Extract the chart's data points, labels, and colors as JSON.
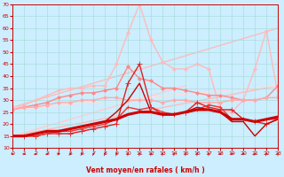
{
  "bg_color": "#cceeff",
  "grid_color": "#aadddd",
  "red_dark": "#cc0000",
  "red_mid": "#ff4444",
  "red_light": "#ffaaaa",
  "red_vlight": "#ffcccc",
  "xlabel": "Vent moyen/en rafales ( km/h )",
  "xmin": 0,
  "xmax": 23,
  "ymin": 10,
  "ymax": 70,
  "yticks": [
    10,
    15,
    20,
    25,
    30,
    35,
    40,
    45,
    50,
    55,
    60,
    65,
    70
  ],
  "xticks": [
    0,
    1,
    2,
    3,
    4,
    5,
    6,
    7,
    8,
    9,
    10,
    11,
    12,
    13,
    14,
    15,
    16,
    17,
    18,
    19,
    20,
    21,
    22,
    23
  ],
  "series": [
    {
      "name": "diagonal_light1",
      "x": [
        0,
        23
      ],
      "y": [
        15,
        36
      ],
      "color": "#ffbbbb",
      "lw": 1.0,
      "marker": null,
      "zorder": 1
    },
    {
      "name": "diagonal_light2",
      "x": [
        0,
        23
      ],
      "y": [
        27,
        60
      ],
      "color": "#ffbbbb",
      "lw": 1.0,
      "marker": null,
      "zorder": 1
    },
    {
      "name": "diagonal_light3",
      "x": [
        0,
        15
      ],
      "y": [
        15,
        36
      ],
      "color": "#ffcccc",
      "lw": 1.0,
      "marker": null,
      "zorder": 1
    },
    {
      "name": "diagonal_lighter",
      "x": [
        0,
        23
      ],
      "y": [
        26,
        36
      ],
      "color": "#ffdddd",
      "lw": 1.0,
      "marker": null,
      "zorder": 1
    },
    {
      "name": "wavy_light_top",
      "x": [
        0,
        1,
        2,
        3,
        4,
        5,
        6,
        7,
        8,
        9,
        10,
        11,
        12,
        13,
        14,
        15,
        16,
        17,
        18,
        19,
        20,
        21,
        22,
        23
      ],
      "y": [
        26,
        28,
        30,
        32,
        34,
        35,
        35,
        36,
        36,
        45,
        58,
        70,
        55,
        46,
        43,
        43,
        45,
        43,
        26,
        25,
        30,
        43,
        59,
        32
      ],
      "color": "#ffbbbb",
      "lw": 1.0,
      "marker": "D",
      "ms": 2,
      "zorder": 2
    },
    {
      "name": "wavy_light_mid",
      "x": [
        0,
        1,
        2,
        3,
        4,
        5,
        6,
        7,
        8,
        9,
        10,
        11,
        12,
        13,
        14,
        15,
        16,
        17,
        18,
        19,
        20,
        21,
        22,
        23
      ],
      "y": [
        26,
        27,
        28,
        29,
        31,
        32,
        33,
        33,
        34,
        35,
        44,
        39,
        38,
        35,
        35,
        34,
        33,
        32,
        32,
        31,
        30,
        30,
        31,
        36
      ],
      "color": "#ff8888",
      "lw": 1.0,
      "marker": "D",
      "ms": 2,
      "zorder": 2
    },
    {
      "name": "wavy_light_low",
      "x": [
        0,
        1,
        2,
        3,
        4,
        5,
        6,
        7,
        8,
        9,
        10,
        11,
        12,
        13,
        14,
        15,
        16,
        17,
        18,
        19,
        20,
        21,
        22,
        23
      ],
      "y": [
        26,
        27,
        27,
        28,
        29,
        29,
        30,
        30,
        31,
        31,
        30,
        30,
        30,
        29,
        30,
        30,
        29,
        29,
        29,
        30,
        30,
        30,
        31,
        31
      ],
      "color": "#ffaaaa",
      "lw": 1.0,
      "marker": "D",
      "ms": 2,
      "zorder": 2
    },
    {
      "name": "red_peak_line",
      "x": [
        0,
        1,
        2,
        3,
        4,
        5,
        6,
        7,
        8,
        9,
        10,
        11,
        12,
        13,
        14,
        15,
        16,
        17,
        18,
        19,
        20,
        21,
        22,
        23
      ],
      "y": [
        15,
        15,
        15,
        16,
        16,
        16,
        17,
        18,
        19,
        20,
        37,
        45,
        27,
        24,
        24,
        25,
        29,
        27,
        26,
        26,
        22,
        21,
        20,
        22
      ],
      "color": "#dd2222",
      "lw": 1.0,
      "marker": "+",
      "ms": 4,
      "zorder": 3
    },
    {
      "name": "red_smooth_high",
      "x": [
        0,
        1,
        2,
        3,
        4,
        5,
        6,
        7,
        8,
        9,
        10,
        11,
        12,
        13,
        14,
        15,
        16,
        17,
        18,
        19,
        20,
        21,
        22,
        23
      ],
      "y": [
        15,
        15,
        15,
        16,
        17,
        17,
        18,
        19,
        20,
        22,
        27,
        26,
        27,
        25,
        24,
        25,
        26,
        28,
        27,
        22,
        22,
        21,
        22,
        22
      ],
      "color": "#ee3333",
      "lw": 1.0,
      "marker": "+",
      "ms": 3,
      "zorder": 3
    },
    {
      "name": "red_smooth_low",
      "x": [
        0,
        1,
        2,
        3,
        4,
        5,
        6,
        7,
        8,
        9,
        10,
        11,
        12,
        13,
        14,
        15,
        16,
        17,
        18,
        19,
        20,
        21,
        22,
        23
      ],
      "y": [
        15,
        15,
        16,
        17,
        17,
        18,
        19,
        20,
        21,
        25,
        30,
        37,
        25,
        24,
        24,
        25,
        27,
        26,
        25,
        21,
        21,
        15,
        20,
        22
      ],
      "color": "#cc0000",
      "lw": 1.0,
      "marker": null,
      "zorder": 3
    },
    {
      "name": "red_thick",
      "x": [
        0,
        1,
        2,
        3,
        4,
        5,
        6,
        7,
        8,
        9,
        10,
        11,
        12,
        13,
        14,
        15,
        16,
        17,
        18,
        19,
        20,
        21,
        22,
        23
      ],
      "y": [
        15,
        15,
        16,
        17,
        17,
        18,
        19,
        20,
        21,
        22,
        24,
        25,
        25,
        24,
        24,
        25,
        26,
        26,
        25,
        22,
        22,
        21,
        22,
        23
      ],
      "color": "#cc0000",
      "lw": 2.2,
      "marker": null,
      "zorder": 3
    }
  ],
  "wind_arrow_angles": [
    0,
    0,
    10,
    20,
    30,
    45,
    50,
    60,
    70,
    80,
    80,
    80,
    80,
    80,
    80,
    80,
    80,
    80,
    0,
    10,
    20,
    45,
    70,
    80
  ]
}
